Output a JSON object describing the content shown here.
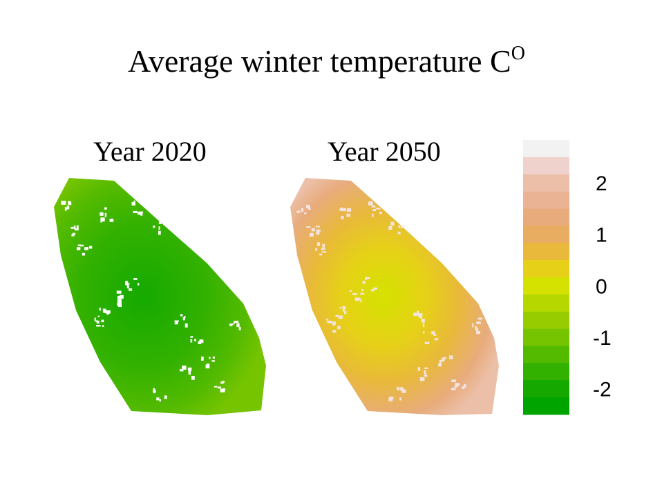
{
  "chart_data": {
    "type": "heatmap",
    "title": "Average winter temperature C",
    "title_superscript": "O",
    "panels": [
      {
        "title": "Year 2020",
        "dominant_range": [
          -2.5,
          -0.5
        ],
        "description_values": "mostly green, approx -2.3 core to -0.8 edges"
      },
      {
        "title": "Year 2050",
        "dominant_range": [
          0,
          2.8
        ],
        "description_values": "core approx 0 to 0.5, edges approx 1 to 2.5"
      }
    ],
    "colorbar": {
      "ticks": [
        "2",
        "1",
        "0",
        "-1",
        "-2"
      ],
      "tick_values": [
        2,
        1,
        0,
        -1,
        -2
      ],
      "range": [
        -2.5,
        2.83
      ],
      "levels_top_to_bottom": [
        "#f2f2f2",
        "#efd2cb",
        "#ecbfa8",
        "#eab393",
        "#e8ac7c",
        "#e8ad60",
        "#e8b93a",
        "#e6d018",
        "#d5e200",
        "#b6d800",
        "#97cd00",
        "#76c400",
        "#53ba00",
        "#33b100",
        "#15a900",
        "#00a400"
      ]
    }
  }
}
